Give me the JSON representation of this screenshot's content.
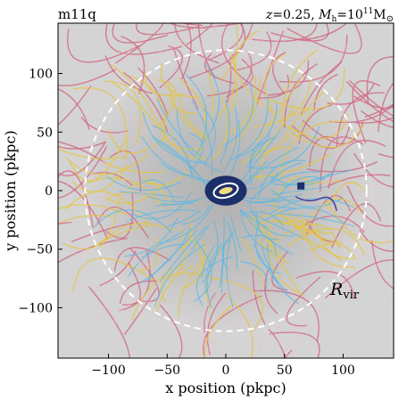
{
  "panel_label": "m11q",
  "header_right": {
    "z_label": "z",
    "z_value": "0.25",
    "mass_label": "M",
    "mass_subscript": "h",
    "mass_value": "10",
    "mass_exponent": "11",
    "mass_unit": "M",
    "mass_unit_symbol": "⊙"
  },
  "annotation": {
    "symbol": "R",
    "subscript": "vir"
  },
  "colors": {
    "background": "#d4d4d4",
    "halo_gas": "#bdbdbd",
    "virial_circle": "#ffffff",
    "tracks_pink": "#d06c86",
    "tracks_yellow": "#e3c545",
    "tracks_blue": "#5ab8e6",
    "tracks_purple": "#4a3a9a",
    "disk_dark": "#1c2f6a",
    "disk_core": "#f2dc82"
  },
  "chart_data": {
    "type": "scatter",
    "title": "",
    "xlabel": "x position (pkpc)",
    "ylabel": "y position (pkpc)",
    "xlim": [
      -143,
      143
    ],
    "ylim": [
      -143,
      143
    ],
    "xticks": [
      -100,
      -50,
      0,
      50,
      100
    ],
    "yticks": [
      -100,
      -50,
      0,
      50,
      100
    ],
    "xtick_labels": [
      "−100",
      "−50",
      "0",
      "50",
      "100"
    ],
    "ytick_labels": [
      "−100",
      "−50",
      "0",
      "50",
      "100"
    ],
    "virial_radius": 120,
    "galaxy": {
      "x": 0,
      "y": 0,
      "size": 17
    },
    "satellite": {
      "x": 64,
      "y": 4
    },
    "grid": false,
    "legend": "none"
  }
}
